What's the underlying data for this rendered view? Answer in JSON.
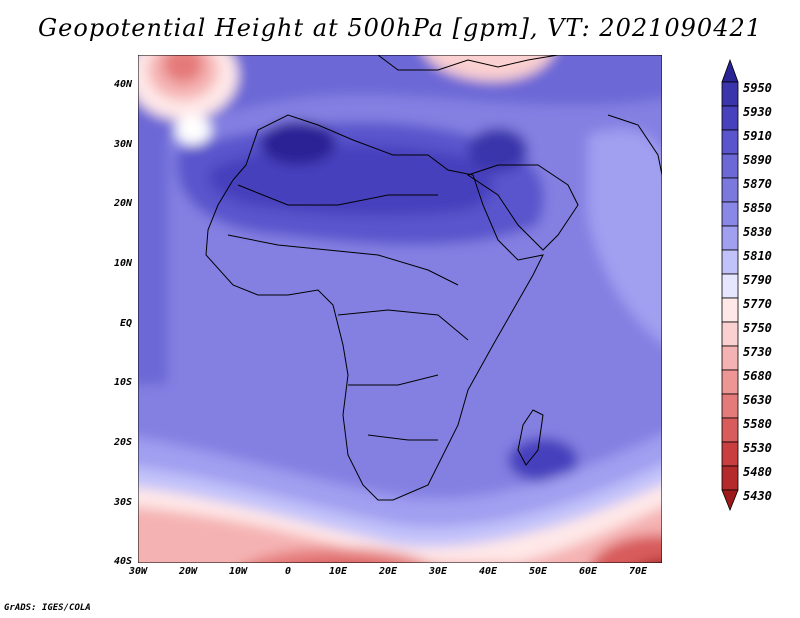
{
  "title": "Geopotential Height at 500hPa [gpm], VT: 2021090421",
  "credit": "GrADS: IGES/COLA",
  "axes": {
    "y_labels": [
      "40N",
      "30N",
      "20N",
      "10N",
      "EQ",
      "10S",
      "20S",
      "30S",
      "40S"
    ],
    "x_labels": [
      "30W",
      "20W",
      "10W",
      "0",
      "10E",
      "20E",
      "30E",
      "40E",
      "50E",
      "60E",
      "70E"
    ]
  },
  "colorbar": {
    "labels": [
      "5950",
      "5930",
      "5910",
      "5890",
      "5870",
      "5850",
      "5830",
      "5810",
      "5790",
      "5770",
      "5750",
      "5730",
      "5680",
      "5630",
      "5580",
      "5530",
      "5480",
      "5430"
    ],
    "colors": [
      "#2a2395",
      "#3a35ab",
      "#4741bd",
      "#5a55cc",
      "#6c68d6",
      "#7c79de",
      "#8a88e6",
      "#a09ff0",
      "#c2c2fa",
      "#e6e6ff",
      "#ffe8e8",
      "#fbd0d0",
      "#f5b2b2",
      "#ee9696",
      "#e57a7a",
      "#d85c5c",
      "#c93e3e",
      "#b52a2a",
      "#9e1a1a"
    ]
  }
}
